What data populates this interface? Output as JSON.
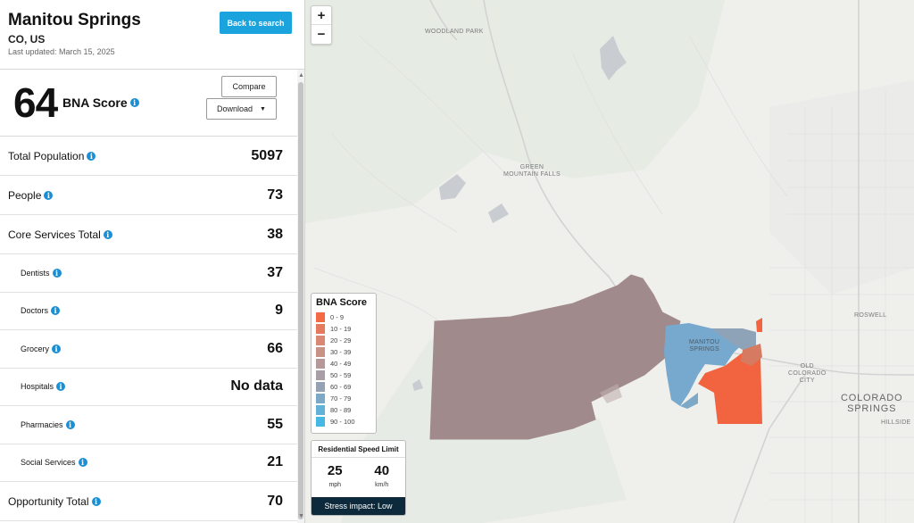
{
  "header": {
    "city": "Manitou Springs",
    "region": "CO, US",
    "last_updated": "Last updated: March 15, 2025",
    "back_label": "Back to search"
  },
  "score": {
    "value": "64",
    "label": "BNA Score",
    "compare_label": "Compare",
    "download_label": "Download"
  },
  "metrics": [
    {
      "label": "Total Population",
      "value": "5097",
      "level": "main"
    },
    {
      "label": "People",
      "value": "73",
      "level": "main"
    },
    {
      "label": "Core Services Total",
      "value": "38",
      "level": "main"
    },
    {
      "label": "Dentists",
      "value": "37",
      "level": "sub"
    },
    {
      "label": "Doctors",
      "value": "9",
      "level": "sub"
    },
    {
      "label": "Grocery",
      "value": "66",
      "level": "sub"
    },
    {
      "label": "Hospitals",
      "value": "No data",
      "level": "sub"
    },
    {
      "label": "Pharmacies",
      "value": "55",
      "level": "sub"
    },
    {
      "label": "Social Services",
      "value": "21",
      "level": "sub"
    },
    {
      "label": "Opportunity Total",
      "value": "70",
      "level": "main"
    }
  ],
  "map": {
    "zoom_in": "+",
    "zoom_out": "−",
    "labels": {
      "woodland_park": "Woodland Park",
      "green_mountain_falls": "Green\nMountain Falls",
      "manitou": "Manitou\nSprings",
      "old_colorado_city": "Old\nColorado\nCity",
      "roswell": "Roswell",
      "colorado_springs": "Colorado\nSprings",
      "hillside": "Hillside"
    },
    "legend": {
      "title": "BNA Score",
      "items": [
        {
          "range": "0 - 9",
          "color": "#f46a45"
        },
        {
          "range": "10 - 19",
          "color": "#e57a5e"
        },
        {
          "range": "20 - 29",
          "color": "#d98873"
        },
        {
          "range": "30 - 39",
          "color": "#c99287"
        },
        {
          "range": "40 - 49",
          "color": "#b59898"
        },
        {
          "range": "50 - 59",
          "color": "#a89fa6"
        },
        {
          "range": "60 - 69",
          "color": "#95a2b4"
        },
        {
          "range": "70 - 79",
          "color": "#7ea9c6"
        },
        {
          "range": "80 - 89",
          "color": "#63b1d6"
        },
        {
          "range": "90 - 100",
          "color": "#46b8e6"
        }
      ]
    },
    "speed": {
      "title": "Residential Speed Limit",
      "mph_value": "25",
      "mph_unit": "mph",
      "kmh_value": "40",
      "kmh_unit": "km/h",
      "stress": "Stress impact: Low"
    }
  }
}
